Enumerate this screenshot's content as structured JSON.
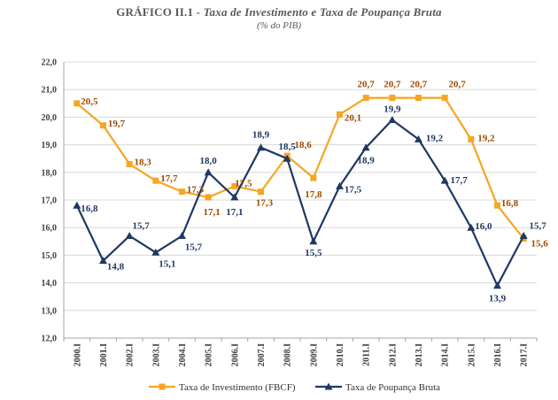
{
  "header": {
    "title_prefix": "GRÁFICO II.1 - ",
    "title_main": "Taxa de Investimento e Taxa de Poupança Bruta",
    "subtitle": "(% do PIB)"
  },
  "colors": {
    "investimento": "#F5A623",
    "poupanca": "#1F3864",
    "investimento_label": "#9C4A00",
    "poupanca_label": "#1F3864",
    "grid": "#D9D9D9",
    "axis": "#A6A6A6"
  },
  "chart_data": {
    "type": "line",
    "title": "Taxa de Investimento e Taxa de Poupança Bruta",
    "subtitle": "(% do PIB)",
    "categories": [
      "2000.I",
      "2001.I",
      "2002.I",
      "2003.I",
      "2004.I",
      "2005.I",
      "2006.I",
      "2007.I",
      "2008.I",
      "2009.I",
      "2010.I",
      "2011.I",
      "2012.I",
      "2013.I",
      "2014.I",
      "2015.I",
      "2016.I",
      "2017.I"
    ],
    "ylim": [
      12.0,
      22.0
    ],
    "yticks": [
      "12,0",
      "13,0",
      "14,0",
      "15,0",
      "16,0",
      "17,0",
      "18,0",
      "19,0",
      "20,0",
      "21,0",
      "22,0"
    ],
    "grid": true,
    "legend_position": "bottom",
    "series": [
      {
        "name": "Taxa de Investimento (FBCF)",
        "marker": "square",
        "values": [
          20.5,
          19.7,
          18.3,
          17.7,
          17.3,
          17.1,
          17.5,
          17.3,
          18.6,
          17.8,
          20.1,
          20.7,
          20.7,
          20.7,
          20.7,
          19.2,
          16.8,
          15.6
        ],
        "labels": [
          "20,5",
          "19,7",
          "18,3",
          "17,7",
          "17,3",
          "17,1",
          "17,5",
          "17,3",
          "18,6",
          "17,8",
          "20,1",
          "20,7",
          "20,7",
          "20,7",
          "20,7",
          "19,2",
          "16,8",
          "15,6"
        ]
      },
      {
        "name": "Taxa de Poupança Bruta",
        "marker": "triangle",
        "values": [
          16.8,
          14.8,
          15.7,
          15.1,
          15.7,
          18.0,
          17.1,
          18.9,
          18.5,
          15.5,
          17.5,
          18.9,
          19.9,
          19.2,
          17.7,
          16.0,
          13.9,
          15.7
        ],
        "labels": [
          "16,8",
          "14,8",
          "15,7",
          "15,1",
          "15,7",
          "18,0",
          "17,1",
          "18,9",
          "18,5",
          "15,5",
          "17,5",
          "18,9",
          "19,9",
          "19,2",
          "17,7",
          "16,0",
          "13,9",
          "15,7"
        ]
      }
    ]
  }
}
